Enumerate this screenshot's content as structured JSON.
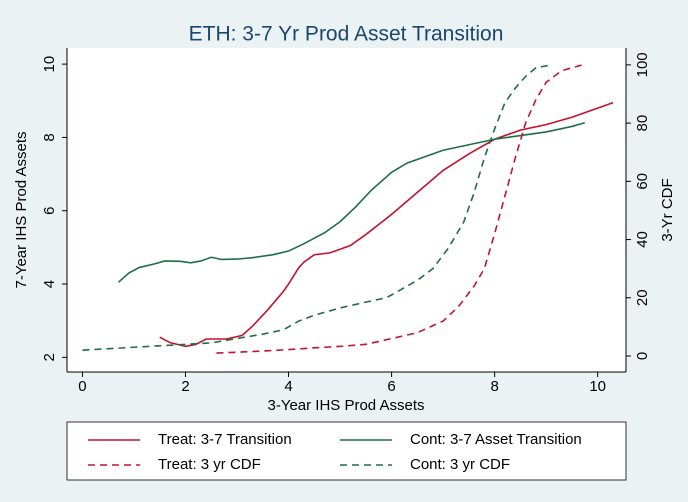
{
  "chart_data": {
    "type": "line",
    "title": "ETH: 3-7 Yr Prod Asset Transition",
    "x_label": "3-Year IHS Prod Assets",
    "y_label": "7-Year IHS Prod Assets",
    "y2_label": "3-Yr CDF",
    "xlim": [
      -0.3,
      10.55
    ],
    "xticks": [
      0,
      2,
      4,
      6,
      8,
      10
    ],
    "ylim": [
      1.6,
      10.44
    ],
    "yticks": [
      2,
      4,
      6,
      8,
      10
    ],
    "y2lim": [
      -5.5,
      105.8
    ],
    "y2ticks": [
      0,
      20,
      40,
      60,
      80,
      100
    ],
    "grid": false,
    "legend": "bottom",
    "series": [
      {
        "name": "Treat: 3-7 Transition",
        "color": "#c4122f",
        "dash": false,
        "axis": "y",
        "x": [
          1.5,
          1.7,
          2.0,
          2.2,
          2.4,
          2.8,
          3.1,
          3.3,
          3.6,
          3.9,
          4.0,
          4.2,
          4.3,
          4.5,
          4.8,
          5.0,
          5.2,
          5.5,
          6.0,
          6.5,
          7.0,
          7.5,
          8.0,
          8.5,
          9.0,
          9.5,
          10.0,
          10.3
        ],
        "values": [
          2.55,
          2.4,
          2.3,
          2.35,
          2.5,
          2.5,
          2.6,
          2.85,
          3.3,
          3.8,
          4.0,
          4.45,
          4.6,
          4.8,
          4.85,
          4.95,
          5.05,
          5.35,
          5.9,
          6.5,
          7.1,
          7.55,
          7.95,
          8.2,
          8.35,
          8.55,
          8.8,
          8.95
        ]
      },
      {
        "name": "Cont: 3-7 Asset Transition",
        "color": "#1f6e43",
        "dash": false,
        "axis": "y",
        "x": [
          0.7,
          0.9,
          1.1,
          1.4,
          1.6,
          1.9,
          2.1,
          2.3,
          2.5,
          2.7,
          3.0,
          3.3,
          3.7,
          4.0,
          4.3,
          4.7,
          5.0,
          5.3,
          5.6,
          6.0,
          6.3,
          6.7,
          7.0,
          7.5,
          8.0,
          8.5,
          9.0,
          9.5,
          9.75
        ],
        "values": [
          4.05,
          4.3,
          4.45,
          4.55,
          4.63,
          4.62,
          4.58,
          4.63,
          4.73,
          4.67,
          4.68,
          4.72,
          4.8,
          4.9,
          5.1,
          5.4,
          5.7,
          6.1,
          6.55,
          7.05,
          7.3,
          7.5,
          7.65,
          7.8,
          7.95,
          8.05,
          8.15,
          8.3,
          8.4
        ]
      },
      {
        "name": "Treat: 3 yr CDF",
        "color": "#c4122f",
        "dash": true,
        "axis": "y2",
        "x": [
          2.6,
          3.0,
          3.5,
          4.0,
          4.5,
          5.0,
          5.5,
          6.0,
          6.5,
          7.0,
          7.3,
          7.6,
          7.8,
          8.0,
          8.2,
          8.4,
          8.6,
          8.8,
          9.0,
          9.3,
          9.7
        ],
        "values": [
          1,
          1.3,
          1.7,
          2.2,
          2.8,
          3.3,
          4,
          6,
          8,
          12,
          17,
          24,
          30,
          42,
          55,
          68,
          80,
          88,
          94,
          98,
          100
        ]
      },
      {
        "name": "Cont: 3 yr CDF",
        "color": "#1f6e43",
        "dash": true,
        "axis": "y2",
        "x": [
          0,
          0.5,
          1,
          1.5,
          2,
          2.5,
          3.0,
          3.5,
          3.9,
          4.2,
          4.5,
          5.0,
          5.5,
          5.9,
          6.2,
          6.5,
          6.8,
          7.1,
          7.4,
          7.6,
          7.8,
          8.0,
          8.2,
          8.4,
          8.6,
          8.8,
          9.1
        ],
        "values": [
          2,
          2.5,
          3,
          3.5,
          4,
          4.5,
          6,
          7.5,
          9,
          12,
          14,
          16.5,
          18.5,
          20,
          23,
          26,
          30,
          37,
          46,
          56,
          68,
          78,
          87,
          92,
          96,
          99,
          100
        ]
      }
    ]
  }
}
